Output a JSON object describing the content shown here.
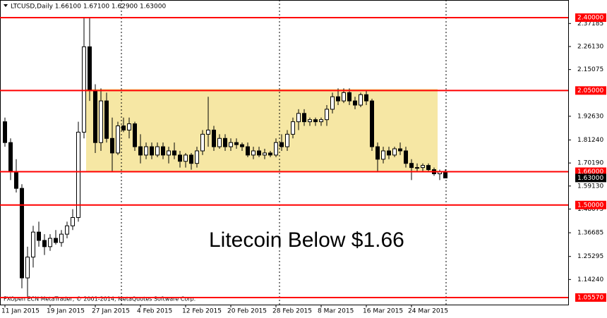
{
  "chart_data": {
    "type": "candlestick",
    "header": "LTCUSD,Daily  1.66100 1.67100 1.62900 1.63000",
    "annotation": "Litecoin Below $1.66",
    "footer": "FXOpen ECN MetaTrader, © 2001-2014, MetaQuotes Software Corp.",
    "categories": [
      "11 Jan 2015",
      null,
      null,
      null,
      null,
      null,
      null,
      null,
      "19 Jan 2015",
      null,
      null,
      null,
      null,
      null,
      null,
      null,
      "27 Jan 2015",
      null,
      null,
      null,
      null,
      null,
      null,
      null,
      "4 Feb 2015",
      null,
      null,
      null,
      null,
      null,
      null,
      null,
      "12 Feb 2015",
      null,
      null,
      null,
      null,
      null,
      null,
      null,
      "20 Feb 2015",
      null,
      null,
      null,
      null,
      null,
      null,
      null,
      "28 Feb 2015",
      null,
      null,
      null,
      null,
      null,
      null,
      null,
      "8 Mar 2015",
      null,
      null,
      null,
      null,
      null,
      null,
      null,
      "16 Mar 2015",
      null,
      null,
      null,
      null,
      null,
      null,
      null,
      "24 Mar 2015",
      null,
      null,
      null,
      null,
      null,
      null
    ],
    "open": [
      1.9,
      1.8,
      1.66,
      1.58,
      1.15,
      1.25,
      1.37,
      1.33,
      1.3,
      1.34,
      1.32,
      1.36,
      1.4,
      1.44,
      1.85,
      2.26,
      2.05,
      1.8,
      2.0,
      1.82,
      1.75,
      1.88,
      1.86,
      1.89,
      1.78,
      1.74,
      1.78,
      1.74,
      1.78,
      1.74,
      1.76,
      1.74,
      1.71,
      1.74,
      1.7,
      1.76,
      1.84,
      1.86,
      1.78,
      1.82,
      1.78,
      1.8,
      1.79,
      1.78,
      1.74,
      1.76,
      1.74,
      1.75,
      1.74,
      1.8,
      1.78,
      1.84,
      1.9,
      1.94,
      1.9,
      1.91,
      1.9,
      1.91,
      1.96,
      2.02,
      2.0,
      2.04,
      2.0,
      1.98,
      2.03,
      2.0,
      1.78,
      1.72,
      1.76,
      1.74,
      1.77,
      1.76,
      1.7,
      1.68,
      1.68,
      1.69,
      1.67,
      1.65,
      1.661
    ],
    "high": [
      1.92,
      1.82,
      1.72,
      1.6,
      1.3,
      1.4,
      1.42,
      1.36,
      1.36,
      1.38,
      1.38,
      1.42,
      1.48,
      1.9,
      2.4,
      2.4,
      2.08,
      2.06,
      2.04,
      1.92,
      1.9,
      1.92,
      1.92,
      1.9,
      1.84,
      1.8,
      1.8,
      1.8,
      1.8,
      1.78,
      1.8,
      1.76,
      1.75,
      1.75,
      1.78,
      1.86,
      2.02,
      1.88,
      1.84,
      1.84,
      1.82,
      1.82,
      1.8,
      1.8,
      1.78,
      1.78,
      1.77,
      1.76,
      1.82,
      1.84,
      1.86,
      1.92,
      1.96,
      1.96,
      1.92,
      1.92,
      1.92,
      1.98,
      2.04,
      2.06,
      2.06,
      2.06,
      2.02,
      2.04,
      2.05,
      2.01,
      1.8,
      1.78,
      1.78,
      1.78,
      1.8,
      1.78,
      1.72,
      1.7,
      1.7,
      1.7,
      1.68,
      1.67,
      1.671
    ],
    "low": [
      1.78,
      1.62,
      1.56,
      1.1,
      1.06,
      1.2,
      1.3,
      1.26,
      1.28,
      1.31,
      1.3,
      1.34,
      1.38,
      1.42,
      1.82,
      2.0,
      1.75,
      1.76,
      1.8,
      1.66,
      1.74,
      1.85,
      1.82,
      1.76,
      1.7,
      1.72,
      1.72,
      1.73,
      1.72,
      1.7,
      1.72,
      1.68,
      1.68,
      1.67,
      1.68,
      1.74,
      1.78,
      1.76,
      1.77,
      1.76,
      1.76,
      1.77,
      1.76,
      1.73,
      1.72,
      1.73,
      1.72,
      1.73,
      1.73,
      1.76,
      1.76,
      1.82,
      1.86,
      1.88,
      1.88,
      1.88,
      1.88,
      1.88,
      1.94,
      1.98,
      1.99,
      1.98,
      1.96,
      1.97,
      1.98,
      1.76,
      1.66,
      1.7,
      1.72,
      1.73,
      1.74,
      1.68,
      1.62,
      1.66,
      1.66,
      1.66,
      1.64,
      1.62,
      1.629
    ],
    "close": [
      1.8,
      1.66,
      1.58,
      1.15,
      1.25,
      1.37,
      1.33,
      1.3,
      1.34,
      1.32,
      1.36,
      1.4,
      1.44,
      1.85,
      2.26,
      2.05,
      1.8,
      2.0,
      1.82,
      1.75,
      1.88,
      1.86,
      1.89,
      1.78,
      1.74,
      1.78,
      1.74,
      1.78,
      1.74,
      1.76,
      1.74,
      1.71,
      1.74,
      1.7,
      1.76,
      1.84,
      1.86,
      1.78,
      1.82,
      1.78,
      1.8,
      1.79,
      1.78,
      1.74,
      1.76,
      1.74,
      1.75,
      1.74,
      1.8,
      1.78,
      1.84,
      1.9,
      1.94,
      1.9,
      1.91,
      1.9,
      1.91,
      1.96,
      2.02,
      2.0,
      2.04,
      2.0,
      1.98,
      2.03,
      2.0,
      1.78,
      1.72,
      1.76,
      1.74,
      1.77,
      1.76,
      1.7,
      1.68,
      1.68,
      1.69,
      1.67,
      1.65,
      1.66,
      1.63
    ],
    "bull_color": "#ffffff",
    "bear_color": "#000000",
    "ylim": [
      1.0217,
      2.4847
    ],
    "yticks": [
      2.37185,
      {
        "value": 2.2613,
        "label": "2.26130"
      },
      2.15075,
      {
        "value": 1.9263,
        "label": "1.92630"
      },
      {
        "value": 1.8124,
        "label": "1.81240"
      },
      {
        "value": 1.7019,
        "label": "1.70190"
      },
      {
        "value": 1.5913,
        "label": "1.59130"
      },
      1.48075,
      1.36685,
      1.25295,
      {
        "value": 1.1424,
        "label": "1.14240"
      }
    ],
    "levels": [
      {
        "value": 2.4,
        "label": "2.40000"
      },
      {
        "value": 2.05,
        "label": "2.05000"
      },
      {
        "value": 1.66,
        "label": "1.66000"
      },
      {
        "value": 1.5,
        "label": "1.50000"
      },
      {
        "value": 1.0557,
        "label": "1.05570"
      }
    ],
    "level_color": "#ff0000",
    "current": {
      "value": 1.63,
      "label": "1.63000"
    }
  }
}
